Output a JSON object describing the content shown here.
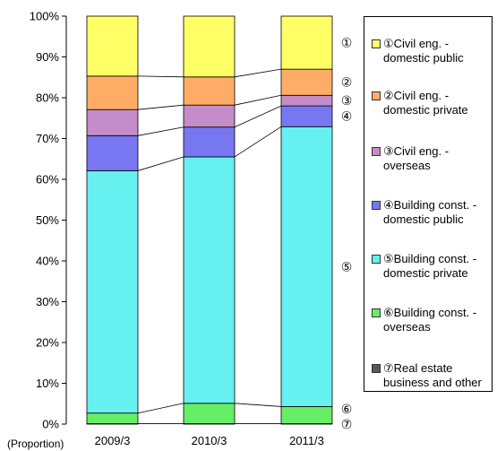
{
  "chart_data": {
    "type": "bar",
    "stacked": true,
    "percent_stacked": true,
    "categories": [
      "2009/3",
      "2010/3",
      "2011/3"
    ],
    "y_unit_label": "(Proportion)",
    "ylim": [
      0,
      100
    ],
    "y_ticks": [
      "0%",
      "10%",
      "20%",
      "30%",
      "40%",
      "50%",
      "60%",
      "70%",
      "80%",
      "90%",
      "100%"
    ],
    "series": [
      {
        "name": "⑦Real estate business and other",
        "marker": "⑦",
        "color": "#595959",
        "values": [
          0.1,
          0.1,
          0.1
        ]
      },
      {
        "name": "⑥Building const. - overseas",
        "marker": "⑥",
        "color": "#66ee66",
        "values": [
          2.6,
          5.0,
          4.2
        ]
      },
      {
        "name": "⑤Building const. - domestic private",
        "marker": "⑤",
        "color": "#66f0f0",
        "values": [
          59.4,
          60.4,
          68.6
        ]
      },
      {
        "name": "④Building const. - domestic public",
        "marker": "④",
        "color": "#7777f2",
        "values": [
          8.6,
          7.3,
          5.1
        ]
      },
      {
        "name": "③Civil eng. - overseas",
        "marker": "③",
        "color": "#c48cc8",
        "values": [
          6.4,
          5.4,
          2.6
        ]
      },
      {
        "name": "②Civil eng. - domestic private",
        "marker": "②",
        "color": "#ffad66",
        "values": [
          8.2,
          6.9,
          6.4
        ]
      },
      {
        "name": "①Civil eng. - domestic public",
        "marker": "①",
        "color": "#ffff66",
        "values": [
          14.7,
          14.9,
          13.0
        ]
      }
    ],
    "legend": {
      "placement": "right",
      "items": [
        {
          "text": "①Civil eng. - domestic public",
          "color": "#ffff66"
        },
        {
          "text": "②Civil eng. - domestic private",
          "color": "#ffad66"
        },
        {
          "text": "③Civil eng. - overseas",
          "color": "#c48cc8"
        },
        {
          "text": "④Building const. - domestic public",
          "color": "#7777f2"
        },
        {
          "text": "⑤Building const. - domestic private",
          "color": "#66f0f0"
        },
        {
          "text": "⑥Building const. - overseas",
          "color": "#66ee66"
        },
        {
          "text": "⑦Real estate business and other",
          "color": "#595959"
        }
      ]
    },
    "grid": false
  }
}
